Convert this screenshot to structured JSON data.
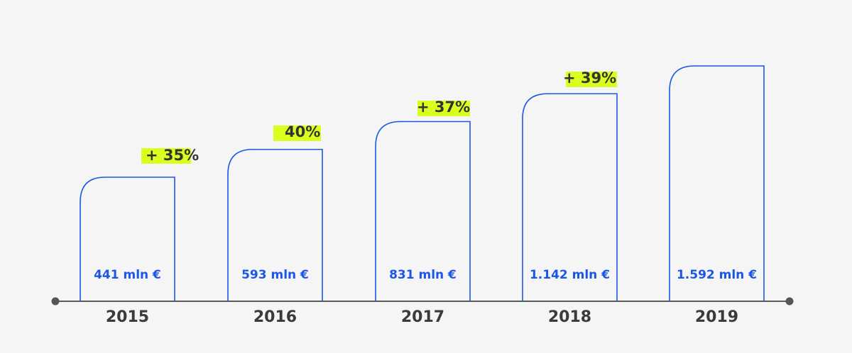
{
  "chart_data": {
    "type": "bar",
    "categories": [
      "2015",
      "2016",
      "2017",
      "2018",
      "2019"
    ],
    "values": [
      441,
      593,
      831,
      1142,
      1592
    ],
    "value_labels": [
      "441 mln €",
      "593 mln €",
      "831 mln €",
      "1.142 mln €",
      "1.592 mln €"
    ],
    "growth_labels": [
      "+ 35%",
      "40%",
      "+ 37%",
      "+ 39%"
    ],
    "title": "",
    "xlabel": "",
    "ylabel": "",
    "unit": "mln €",
    "grid": false,
    "colors": {
      "bar_outline": "#1a56e8",
      "value_text": "#1a56e8",
      "highlight": "#d9ff1f",
      "year_text": "#3a3a3a",
      "axis": "#5a5a5a"
    }
  }
}
